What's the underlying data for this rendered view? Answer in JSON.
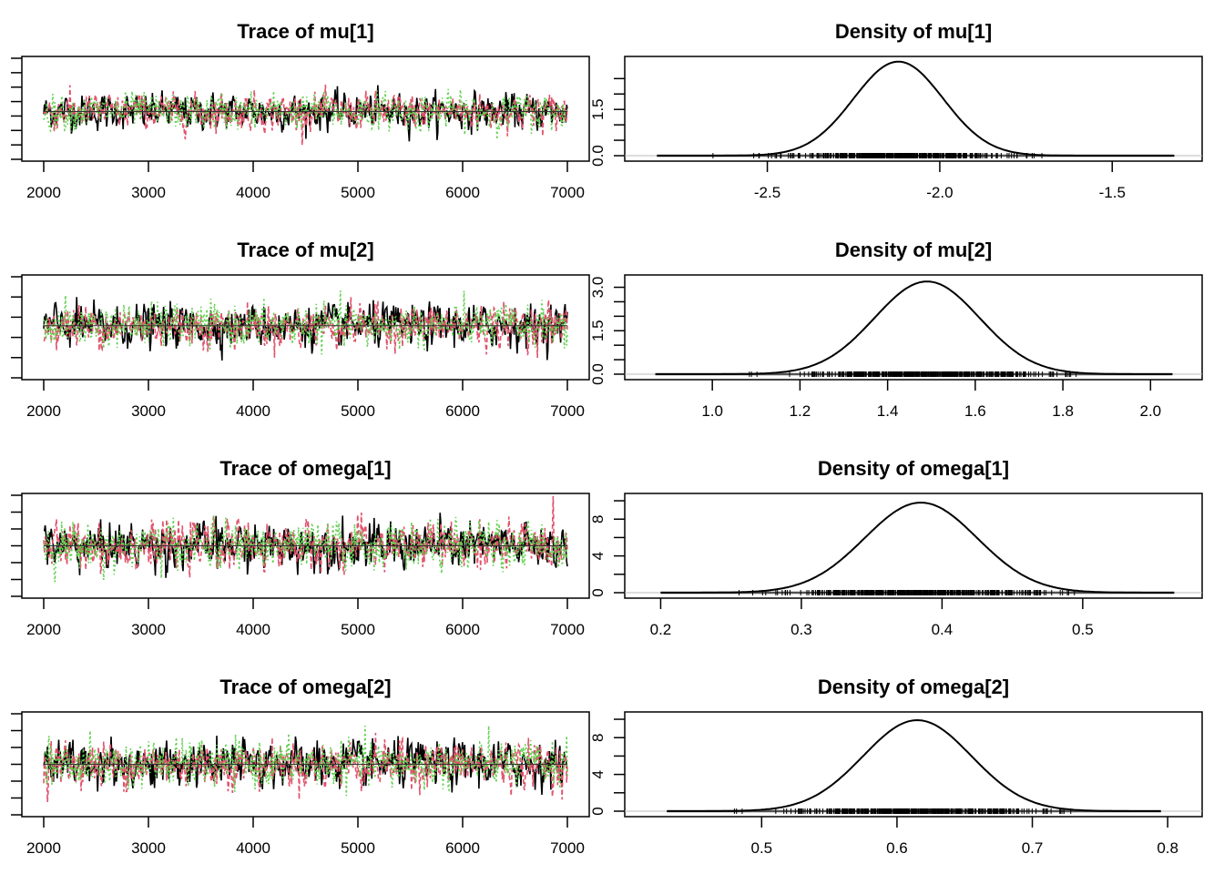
{
  "chart_data": [
    {
      "type": "line",
      "kind": "trace",
      "title": "Trace of mu[1]",
      "xlabel": "",
      "ylabel": "",
      "xlim": [
        2000,
        7000
      ],
      "x_ticks": [
        2000,
        3000,
        4000,
        5000,
        6000,
        7000
      ],
      "x_tick_labels": [
        "2000",
        "3000",
        "4000",
        "5000",
        "6000",
        "7000"
      ],
      "y_tick_count": 8,
      "y_tick_labels_visible": false,
      "ylim": [
        -2.85,
        -1.3
      ],
      "chain_center": -2.12,
      "chain_spread": 0.13,
      "series": [
        {
          "name": "chain 1",
          "color": "#000000",
          "style": "solid"
        },
        {
          "name": "chain 2",
          "color": "#DF536B",
          "style": "dashed"
        },
        {
          "name": "chain 3",
          "color": "#61D04F",
          "style": "dotted"
        }
      ],
      "mean_line": -2.12
    },
    {
      "type": "line",
      "kind": "density",
      "title": "Density of mu[1]",
      "xlabel": "",
      "ylabel": "",
      "xlim": [
        -2.85,
        -1.3
      ],
      "x_ticks": [
        -2.5,
        -2.0,
        -1.5
      ],
      "x_tick_labels": [
        "-2.5",
        "-2.0",
        "-1.5"
      ],
      "ylim": [
        0,
        3.1
      ],
      "y_ticks": [
        0.0,
        0.5,
        1.0,
        1.5,
        2.0,
        2.5
      ],
      "y_tick_labels": [
        "0.0",
        "",
        "",
        "1.5",
        "",
        ""
      ],
      "peak_x": -2.12,
      "peak_y": 3.05,
      "sd": 0.13,
      "rug_range": [
        -2.82,
        -1.32
      ],
      "series": [
        {
          "name": "density",
          "color": "#000000"
        }
      ]
    },
    {
      "type": "line",
      "kind": "trace",
      "title": "Trace of mu[2]",
      "xlabel": "",
      "ylabel": "",
      "xlim": [
        2000,
        7000
      ],
      "x_ticks": [
        2000,
        3000,
        4000,
        5000,
        6000,
        7000
      ],
      "x_tick_labels": [
        "2000",
        "3000",
        "4000",
        "5000",
        "6000",
        "7000"
      ],
      "y_tick_count": 6,
      "y_tick_labels_visible": false,
      "ylim": [
        0.85,
        2.07
      ],
      "chain_center": 1.48,
      "chain_spread": 0.12,
      "series": [
        {
          "name": "chain 1",
          "color": "#000000",
          "style": "solid"
        },
        {
          "name": "chain 2",
          "color": "#DF536B",
          "style": "dashed"
        },
        {
          "name": "chain 3",
          "color": "#61D04F",
          "style": "dotted"
        }
      ],
      "mean_line": 1.48
    },
    {
      "type": "line",
      "kind": "density",
      "title": "Density of mu[2]",
      "xlabel": "",
      "ylabel": "",
      "xlim": [
        0.85,
        2.07
      ],
      "x_ticks": [
        1.0,
        1.2,
        1.4,
        1.6,
        1.8,
        2.0
      ],
      "x_tick_labels": [
        "1.0",
        "1.2",
        "1.4",
        "1.6",
        "1.8",
        "2.0"
      ],
      "ylim": [
        0,
        3.3
      ],
      "y_ticks": [
        0.0,
        0.5,
        1.0,
        1.5,
        2.0,
        2.5,
        3.0
      ],
      "y_tick_labels": [
        "0.0",
        "",
        "",
        "1.5",
        "",
        "",
        "3.0"
      ],
      "peak_x": 1.49,
      "peak_y": 3.2,
      "sd": 0.12,
      "rug_range": [
        0.87,
        2.05
      ],
      "series": [
        {
          "name": "density",
          "color": "#000000"
        }
      ]
    },
    {
      "type": "line",
      "kind": "trace",
      "title": "Trace of omega[1]",
      "xlabel": "",
      "ylabel": "",
      "xlim": [
        2000,
        7000
      ],
      "x_ticks": [
        2000,
        3000,
        4000,
        5000,
        6000,
        7000
      ],
      "x_tick_labels": [
        "2000",
        "3000",
        "4000",
        "5000",
        "6000",
        "7000"
      ],
      "y_tick_count": 7,
      "y_tick_labels_visible": false,
      "ylim": [
        0.2,
        0.57
      ],
      "chain_center": 0.385,
      "chain_spread": 0.04,
      "series": [
        {
          "name": "chain 1",
          "color": "#000000",
          "style": "solid"
        },
        {
          "name": "chain 2",
          "color": "#DF536B",
          "style": "dashed"
        },
        {
          "name": "chain 3",
          "color": "#61D04F",
          "style": "dotted"
        }
      ],
      "mean_line": 0.385
    },
    {
      "type": "line",
      "kind": "density",
      "title": "Density of omega[1]",
      "xlabel": "",
      "ylabel": "",
      "xlim": [
        0.19,
        0.57
      ],
      "x_ticks": [
        0.2,
        0.3,
        0.4,
        0.5
      ],
      "x_tick_labels": [
        "0.2",
        "0.3",
        "0.4",
        "0.5"
      ],
      "ylim": [
        0,
        10.4
      ],
      "y_ticks": [
        0,
        2,
        4,
        6,
        8,
        10
      ],
      "y_tick_labels": [
        "0",
        "",
        "4",
        "",
        "8",
        ""
      ],
      "peak_x": 0.385,
      "peak_y": 9.8,
      "sd": 0.04,
      "rug_range": [
        0.2,
        0.565
      ],
      "series": [
        {
          "name": "density",
          "color": "#000000"
        }
      ]
    },
    {
      "type": "line",
      "kind": "trace",
      "title": "Trace of omega[2]",
      "xlabel": "",
      "ylabel": "",
      "xlim": [
        2000,
        7000
      ],
      "x_ticks": [
        2000,
        3000,
        4000,
        5000,
        6000,
        7000
      ],
      "x_tick_labels": [
        "2000",
        "3000",
        "4000",
        "5000",
        "6000",
        "7000"
      ],
      "y_tick_count": 7,
      "y_tick_labels_visible": false,
      "ylim": [
        0.43,
        0.8
      ],
      "chain_center": 0.615,
      "chain_spread": 0.04,
      "series": [
        {
          "name": "chain 1",
          "color": "#000000",
          "style": "solid"
        },
        {
          "name": "chain 2",
          "color": "#DF536B",
          "style": "dashed"
        },
        {
          "name": "chain 3",
          "color": "#61D04F",
          "style": "dotted"
        }
      ],
      "mean_line": 0.615
    },
    {
      "type": "line",
      "kind": "density",
      "title": "Density of omega[2]",
      "xlabel": "",
      "ylabel": "",
      "xlim": [
        0.415,
        0.81
      ],
      "x_ticks": [
        0.5,
        0.6,
        0.7,
        0.8
      ],
      "x_tick_labels": [
        "0.5",
        "0.6",
        "0.7",
        "0.8"
      ],
      "ylim": [
        0,
        10.4
      ],
      "y_ticks": [
        0,
        2,
        4,
        6,
        8,
        10
      ],
      "y_tick_labels": [
        "0",
        "",
        "4",
        "",
        "8",
        ""
      ],
      "peak_x": 0.615,
      "peak_y": 9.9,
      "sd": 0.04,
      "rug_range": [
        0.43,
        0.795
      ],
      "series": [
        {
          "name": "density",
          "color": "#000000"
        }
      ]
    }
  ]
}
